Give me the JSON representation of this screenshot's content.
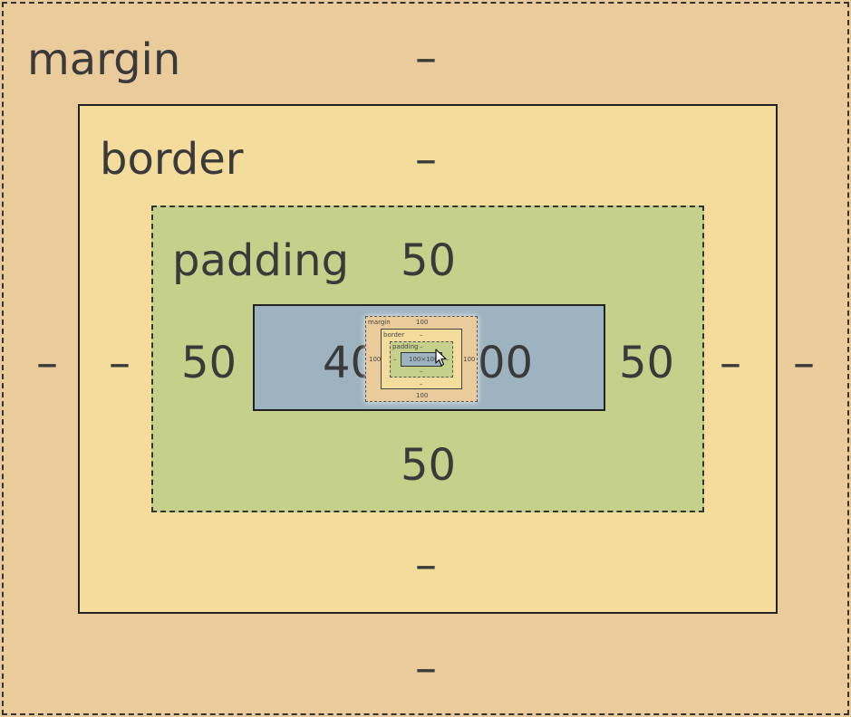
{
  "box_model": {
    "margin": {
      "label": "margin",
      "top": "–",
      "right": "–",
      "bottom": "–",
      "left": "–"
    },
    "border": {
      "label": "border",
      "top": "–",
      "right": "–",
      "bottom": "–",
      "left": "–"
    },
    "padding": {
      "label": "padding",
      "top": "50",
      "right": "50",
      "bottom": "50",
      "left": "50"
    },
    "content": {
      "left_fragment": "40",
      "right_fragment": "00"
    }
  },
  "mini_box_model": {
    "margin": {
      "label": "margin",
      "top": "100",
      "left": "100",
      "right": "100",
      "bottom": "100"
    },
    "border": {
      "label": "border",
      "top": "–",
      "bottom": "–"
    },
    "padding": {
      "label": "padding",
      "top": "–",
      "left": "–",
      "right": "–",
      "bottom": "–"
    },
    "content": {
      "size": "100×100"
    }
  },
  "colors": {
    "margin": "#eacb9c",
    "border": "#f3dc9c",
    "padding": "#c5d08a",
    "content": "#9db4c0"
  },
  "icons": {
    "cursor": "arrow-cursor-icon"
  }
}
